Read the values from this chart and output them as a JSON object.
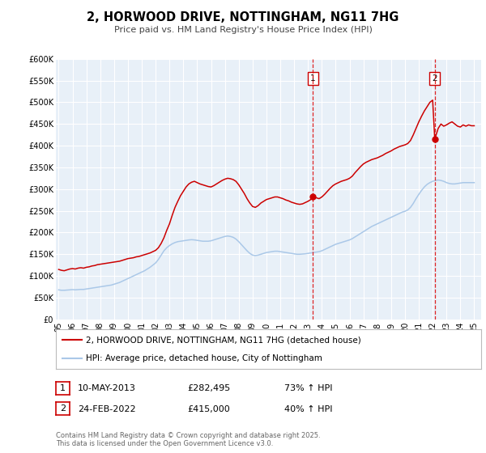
{
  "title": "2, HORWOOD DRIVE, NOTTINGHAM, NG11 7HG",
  "subtitle": "Price paid vs. HM Land Registry's House Price Index (HPI)",
  "ylim": [
    0,
    600000
  ],
  "yticks": [
    0,
    50000,
    100000,
    150000,
    200000,
    250000,
    300000,
    350000,
    400000,
    450000,
    500000,
    550000,
    600000
  ],
  "ytick_labels": [
    "£0",
    "£50K",
    "£100K",
    "£150K",
    "£200K",
    "£250K",
    "£300K",
    "£350K",
    "£400K",
    "£450K",
    "£500K",
    "£550K",
    "£600K"
  ],
  "xlim_start": 1994.8,
  "xlim_end": 2025.5,
  "xticks": [
    1995,
    1996,
    1997,
    1998,
    1999,
    2000,
    2001,
    2002,
    2003,
    2004,
    2005,
    2006,
    2007,
    2008,
    2009,
    2010,
    2011,
    2012,
    2013,
    2014,
    2015,
    2016,
    2017,
    2018,
    2019,
    2020,
    2021,
    2022,
    2023,
    2024,
    2025
  ],
  "background_color": "#ffffff",
  "plot_bg_color": "#e8f0f8",
  "grid_color": "#ffffff",
  "red_line_color": "#cc0000",
  "blue_line_color": "#aac8e8",
  "marker1_date": 2013.36,
  "marker1_red_value": 282495,
  "marker2_date": 2022.15,
  "marker2_red_value": 415000,
  "vline_color": "#dd0000",
  "sale1_date": "10-MAY-2013",
  "sale1_price": "£282,495",
  "sale1_hpi": "73% ↑ HPI",
  "sale2_date": "24-FEB-2022",
  "sale2_price": "£415,000",
  "sale2_hpi": "40% ↑ HPI",
  "legend_label_red": "2, HORWOOD DRIVE, NOTTINGHAM, NG11 7HG (detached house)",
  "legend_label_blue": "HPI: Average price, detached house, City of Nottingham",
  "footer": "Contains HM Land Registry data © Crown copyright and database right 2025.\nThis data is licensed under the Open Government Licence v3.0.",
  "red_data": [
    [
      1995.0,
      115000
    ],
    [
      1995.2,
      113000
    ],
    [
      1995.4,
      112000
    ],
    [
      1995.6,
      114000
    ],
    [
      1995.8,
      116000
    ],
    [
      1996.0,
      117000
    ],
    [
      1996.2,
      116000
    ],
    [
      1996.4,
      118000
    ],
    [
      1996.6,
      119000
    ],
    [
      1996.8,
      118000
    ],
    [
      1997.0,
      120000
    ],
    [
      1997.2,
      121000
    ],
    [
      1997.4,
      123000
    ],
    [
      1997.6,
      124000
    ],
    [
      1997.8,
      126000
    ],
    [
      1998.0,
      127000
    ],
    [
      1998.2,
      128000
    ],
    [
      1998.4,
      129000
    ],
    [
      1998.6,
      130000
    ],
    [
      1998.8,
      131000
    ],
    [
      1999.0,
      132000
    ],
    [
      1999.2,
      133000
    ],
    [
      1999.4,
      134000
    ],
    [
      1999.6,
      136000
    ],
    [
      1999.8,
      138000
    ],
    [
      2000.0,
      140000
    ],
    [
      2000.2,
      141000
    ],
    [
      2000.4,
      142000
    ],
    [
      2000.6,
      144000
    ],
    [
      2000.8,
      145000
    ],
    [
      2001.0,
      147000
    ],
    [
      2001.2,
      149000
    ],
    [
      2001.4,
      151000
    ],
    [
      2001.6,
      153000
    ],
    [
      2001.8,
      156000
    ],
    [
      2002.0,
      159000
    ],
    [
      2002.2,
      165000
    ],
    [
      2002.4,
      175000
    ],
    [
      2002.6,
      188000
    ],
    [
      2002.8,
      205000
    ],
    [
      2003.0,
      220000
    ],
    [
      2003.2,
      240000
    ],
    [
      2003.4,
      258000
    ],
    [
      2003.6,
      272000
    ],
    [
      2003.8,
      285000
    ],
    [
      2004.0,
      295000
    ],
    [
      2004.2,
      305000
    ],
    [
      2004.4,
      312000
    ],
    [
      2004.6,
      316000
    ],
    [
      2004.8,
      318000
    ],
    [
      2005.0,
      315000
    ],
    [
      2005.2,
      312000
    ],
    [
      2005.4,
      310000
    ],
    [
      2005.6,
      308000
    ],
    [
      2005.8,
      306000
    ],
    [
      2006.0,
      305000
    ],
    [
      2006.2,
      308000
    ],
    [
      2006.4,
      312000
    ],
    [
      2006.6,
      316000
    ],
    [
      2006.8,
      320000
    ],
    [
      2007.0,
      323000
    ],
    [
      2007.2,
      325000
    ],
    [
      2007.4,
      324000
    ],
    [
      2007.6,
      322000
    ],
    [
      2007.8,
      318000
    ],
    [
      2008.0,
      310000
    ],
    [
      2008.2,
      300000
    ],
    [
      2008.4,
      290000
    ],
    [
      2008.6,
      278000
    ],
    [
      2008.8,
      268000
    ],
    [
      2009.0,
      260000
    ],
    [
      2009.2,
      258000
    ],
    [
      2009.4,
      262000
    ],
    [
      2009.6,
      268000
    ],
    [
      2009.8,
      272000
    ],
    [
      2010.0,
      276000
    ],
    [
      2010.2,
      278000
    ],
    [
      2010.4,
      280000
    ],
    [
      2010.6,
      282000
    ],
    [
      2010.8,
      282000
    ],
    [
      2011.0,
      280000
    ],
    [
      2011.2,
      278000
    ],
    [
      2011.4,
      275000
    ],
    [
      2011.6,
      273000
    ],
    [
      2011.8,
      270000
    ],
    [
      2012.0,
      268000
    ],
    [
      2012.2,
      266000
    ],
    [
      2012.4,
      265000
    ],
    [
      2012.6,
      266000
    ],
    [
      2012.8,
      269000
    ],
    [
      2013.0,
      272000
    ],
    [
      2013.2,
      276000
    ],
    [
      2013.36,
      282495
    ],
    [
      2013.6,
      280000
    ],
    [
      2013.8,
      278000
    ],
    [
      2014.0,
      282000
    ],
    [
      2014.2,
      288000
    ],
    [
      2014.4,
      295000
    ],
    [
      2014.6,
      302000
    ],
    [
      2014.8,
      308000
    ],
    [
      2015.0,
      312000
    ],
    [
      2015.2,
      315000
    ],
    [
      2015.4,
      318000
    ],
    [
      2015.6,
      320000
    ],
    [
      2015.8,
      322000
    ],
    [
      2016.0,
      325000
    ],
    [
      2016.2,
      330000
    ],
    [
      2016.4,
      338000
    ],
    [
      2016.6,
      345000
    ],
    [
      2016.8,
      352000
    ],
    [
      2017.0,
      358000
    ],
    [
      2017.2,
      362000
    ],
    [
      2017.4,
      365000
    ],
    [
      2017.6,
      368000
    ],
    [
      2017.8,
      370000
    ],
    [
      2018.0,
      372000
    ],
    [
      2018.2,
      375000
    ],
    [
      2018.4,
      378000
    ],
    [
      2018.6,
      382000
    ],
    [
      2018.8,
      385000
    ],
    [
      2019.0,
      388000
    ],
    [
      2019.2,
      392000
    ],
    [
      2019.4,
      395000
    ],
    [
      2019.6,
      398000
    ],
    [
      2019.8,
      400000
    ],
    [
      2020.0,
      402000
    ],
    [
      2020.2,
      405000
    ],
    [
      2020.4,
      412000
    ],
    [
      2020.6,
      425000
    ],
    [
      2020.8,
      440000
    ],
    [
      2021.0,
      455000
    ],
    [
      2021.2,
      468000
    ],
    [
      2021.4,
      480000
    ],
    [
      2021.6,
      490000
    ],
    [
      2021.8,
      500000
    ],
    [
      2022.0,
      505000
    ],
    [
      2022.15,
      415000
    ],
    [
      2022.4,
      440000
    ],
    [
      2022.6,
      450000
    ],
    [
      2022.8,
      445000
    ],
    [
      2023.0,
      448000
    ],
    [
      2023.2,
      452000
    ],
    [
      2023.4,
      455000
    ],
    [
      2023.6,
      450000
    ],
    [
      2023.8,
      445000
    ],
    [
      2024.0,
      443000
    ],
    [
      2024.2,
      448000
    ],
    [
      2024.4,
      445000
    ],
    [
      2024.6,
      448000
    ],
    [
      2024.8,
      446000
    ],
    [
      2025.0,
      446000
    ]
  ],
  "blue_data": [
    [
      1995.0,
      68000
    ],
    [
      1995.2,
      67000
    ],
    [
      1995.4,
      67000
    ],
    [
      1995.6,
      67500
    ],
    [
      1995.8,
      68000
    ],
    [
      1996.0,
      68500
    ],
    [
      1996.2,
      68000
    ],
    [
      1996.4,
      68500
    ],
    [
      1996.6,
      69000
    ],
    [
      1996.8,
      69000
    ],
    [
      1997.0,
      70000
    ],
    [
      1997.2,
      71000
    ],
    [
      1997.4,
      72000
    ],
    [
      1997.6,
      73000
    ],
    [
      1997.8,
      74000
    ],
    [
      1998.0,
      75000
    ],
    [
      1998.2,
      76000
    ],
    [
      1998.4,
      77000
    ],
    [
      1998.6,
      78000
    ],
    [
      1998.8,
      79000
    ],
    [
      1999.0,
      81000
    ],
    [
      1999.2,
      83000
    ],
    [
      1999.4,
      85000
    ],
    [
      1999.6,
      88000
    ],
    [
      1999.8,
      91000
    ],
    [
      2000.0,
      94000
    ],
    [
      2000.2,
      97000
    ],
    [
      2000.4,
      100000
    ],
    [
      2000.6,
      103000
    ],
    [
      2000.8,
      106000
    ],
    [
      2001.0,
      109000
    ],
    [
      2001.2,
      112000
    ],
    [
      2001.4,
      116000
    ],
    [
      2001.6,
      120000
    ],
    [
      2001.8,
      125000
    ],
    [
      2002.0,
      130000
    ],
    [
      2002.2,
      138000
    ],
    [
      2002.4,
      148000
    ],
    [
      2002.6,
      158000
    ],
    [
      2002.8,
      165000
    ],
    [
      2003.0,
      170000
    ],
    [
      2003.2,
      174000
    ],
    [
      2003.4,
      177000
    ],
    [
      2003.6,
      179000
    ],
    [
      2003.8,
      180000
    ],
    [
      2004.0,
      181000
    ],
    [
      2004.2,
      182000
    ],
    [
      2004.4,
      183000
    ],
    [
      2004.6,
      183500
    ],
    [
      2004.8,
      183000
    ],
    [
      2005.0,
      182000
    ],
    [
      2005.2,
      181000
    ],
    [
      2005.4,
      180000
    ],
    [
      2005.6,
      180000
    ],
    [
      2005.8,
      180000
    ],
    [
      2006.0,
      181000
    ],
    [
      2006.2,
      183000
    ],
    [
      2006.4,
      185000
    ],
    [
      2006.6,
      187000
    ],
    [
      2006.8,
      189000
    ],
    [
      2007.0,
      191000
    ],
    [
      2007.2,
      192000
    ],
    [
      2007.4,
      191000
    ],
    [
      2007.6,
      189000
    ],
    [
      2007.8,
      185000
    ],
    [
      2008.0,
      179000
    ],
    [
      2008.2,
      172000
    ],
    [
      2008.4,
      165000
    ],
    [
      2008.6,
      158000
    ],
    [
      2008.8,
      152000
    ],
    [
      2009.0,
      148000
    ],
    [
      2009.2,
      147000
    ],
    [
      2009.4,
      148000
    ],
    [
      2009.6,
      150000
    ],
    [
      2009.8,
      152000
    ],
    [
      2010.0,
      154000
    ],
    [
      2010.2,
      155000
    ],
    [
      2010.4,
      156000
    ],
    [
      2010.6,
      157000
    ],
    [
      2010.8,
      157000
    ],
    [
      2011.0,
      156000
    ],
    [
      2011.2,
      155000
    ],
    [
      2011.4,
      154000
    ],
    [
      2011.6,
      153000
    ],
    [
      2011.8,
      152000
    ],
    [
      2012.0,
      151000
    ],
    [
      2012.2,
      150000
    ],
    [
      2012.4,
      150000
    ],
    [
      2012.6,
      150500
    ],
    [
      2012.8,
      151000
    ],
    [
      2013.0,
      152000
    ],
    [
      2013.2,
      153000
    ],
    [
      2013.4,
      154000
    ],
    [
      2013.6,
      155000
    ],
    [
      2013.8,
      156000
    ],
    [
      2014.0,
      158000
    ],
    [
      2014.2,
      161000
    ],
    [
      2014.4,
      164000
    ],
    [
      2014.6,
      167000
    ],
    [
      2014.8,
      170000
    ],
    [
      2015.0,
      173000
    ],
    [
      2015.2,
      175000
    ],
    [
      2015.4,
      177000
    ],
    [
      2015.6,
      179000
    ],
    [
      2015.8,
      181000
    ],
    [
      2016.0,
      183000
    ],
    [
      2016.2,
      186000
    ],
    [
      2016.4,
      190000
    ],
    [
      2016.6,
      194000
    ],
    [
      2016.8,
      198000
    ],
    [
      2017.0,
      202000
    ],
    [
      2017.2,
      206000
    ],
    [
      2017.4,
      210000
    ],
    [
      2017.6,
      214000
    ],
    [
      2017.8,
      217000
    ],
    [
      2018.0,
      220000
    ],
    [
      2018.2,
      223000
    ],
    [
      2018.4,
      226000
    ],
    [
      2018.6,
      229000
    ],
    [
      2018.8,
      232000
    ],
    [
      2019.0,
      235000
    ],
    [
      2019.2,
      238000
    ],
    [
      2019.4,
      241000
    ],
    [
      2019.6,
      244000
    ],
    [
      2019.8,
      247000
    ],
    [
      2020.0,
      249000
    ],
    [
      2020.2,
      252000
    ],
    [
      2020.4,
      258000
    ],
    [
      2020.6,
      267000
    ],
    [
      2020.8,
      278000
    ],
    [
      2021.0,
      288000
    ],
    [
      2021.2,
      297000
    ],
    [
      2021.4,
      305000
    ],
    [
      2021.6,
      311000
    ],
    [
      2021.8,
      315000
    ],
    [
      2022.0,
      318000
    ],
    [
      2022.2,
      320000
    ],
    [
      2022.4,
      321000
    ],
    [
      2022.6,
      320000
    ],
    [
      2022.8,
      318000
    ],
    [
      2023.0,
      315000
    ],
    [
      2023.2,
      313000
    ],
    [
      2023.4,
      312000
    ],
    [
      2023.6,
      312000
    ],
    [
      2023.8,
      313000
    ],
    [
      2024.0,
      314000
    ],
    [
      2024.2,
      315000
    ],
    [
      2024.4,
      315000
    ],
    [
      2024.6,
      315000
    ],
    [
      2024.8,
      315000
    ],
    [
      2025.0,
      315000
    ]
  ]
}
